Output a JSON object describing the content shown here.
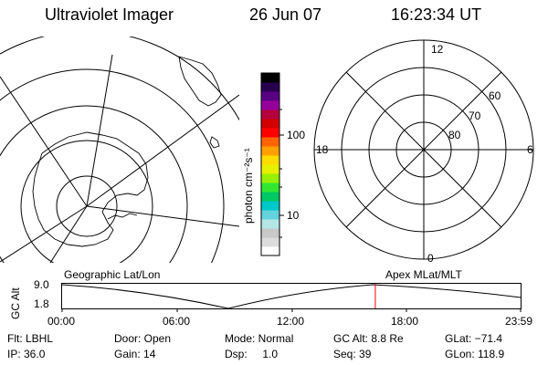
{
  "header": {
    "instrument": "Ultraviolet Imager",
    "date": "26 Jun 07",
    "time": "16:23:34 UT"
  },
  "colorbar": {
    "unit_label": "photon cm⁻²s⁻¹",
    "ticks": [
      "100",
      "10"
    ],
    "colors": [
      "#ffffff",
      "#dcdcdc",
      "#c8c8c8",
      "#b4e6e6",
      "#64d2dc",
      "#00c8c8",
      "#00c864",
      "#32e632",
      "#96f000",
      "#e6f000",
      "#ffdc00",
      "#ffa000",
      "#ff6400",
      "#ff0000",
      "#d20000",
      "#b4003c",
      "#96009a",
      "#5a0082",
      "#280050",
      "#000000"
    ]
  },
  "left_map": {
    "label": "Geographic Lat/Lon"
  },
  "right_map": {
    "label": "Apex MLat/MLT",
    "mlt_labels": {
      "top": "12",
      "left": "18",
      "right": "6",
      "bottom": "0"
    },
    "lat_labels": [
      "60",
      "70",
      "80"
    ]
  },
  "timeline": {
    "y_axis_label": "GC Alt",
    "y_ticks": [
      "9.0",
      "1.8"
    ],
    "x_ticks": [
      "00:00",
      "06:00",
      "12:00",
      "18:00",
      "23:59"
    ],
    "marker_color": "#ff0000",
    "current_fraction": 0.6831
  },
  "status": {
    "filter": "Flt: LBHL",
    "ip": "IP: 36.0",
    "door": "Door: Open",
    "gain": "Gain: 14",
    "mode": "Mode: Normal",
    "dsp": "Dsp:     1.0",
    "gc_alt": "GC Alt: 8.8 Re",
    "seq": "Seq: 39",
    "glat": "GLat: −71.4",
    "glon": "GLon: 118.9"
  }
}
